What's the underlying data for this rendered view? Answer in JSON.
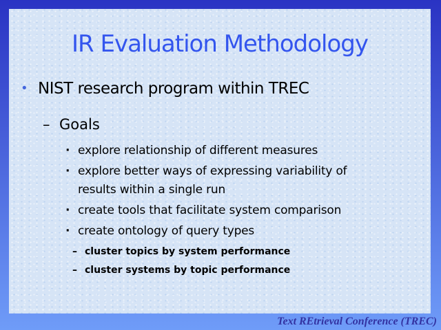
{
  "slide": {
    "title": "IR Evaluation Methodology",
    "footer": "Text REtrieval Conference (TREC)",
    "colors": {
      "bg_top": "#2a33c3",
      "bg_bottom": "#6f9cf8",
      "panel": "#d6e4f6",
      "title": "#3355ee",
      "bullet_dot": "#4466dd",
      "body": "#000000",
      "footer": "#3333a2"
    },
    "items": [
      {
        "level": 1,
        "marker": "•",
        "text": "NIST research program within TREC"
      },
      {
        "level": 2,
        "marker": "–",
        "text": "Goals"
      },
      {
        "level": 3,
        "marker": "·",
        "text": "explore relationship of different measures"
      },
      {
        "level": 3,
        "marker": "·",
        "text": "explore better ways of expressing variability of\nresults within a single run"
      },
      {
        "level": 3,
        "marker": "·",
        "text": "create tools that facilitate system comparison"
      },
      {
        "level": 3,
        "marker": "·",
        "text": "create ontology of query types"
      },
      {
        "level": 4,
        "marker": "–",
        "text": "cluster topics by system performance"
      },
      {
        "level": 4,
        "marker": "–",
        "text": "cluster systems by topic performance"
      }
    ]
  }
}
